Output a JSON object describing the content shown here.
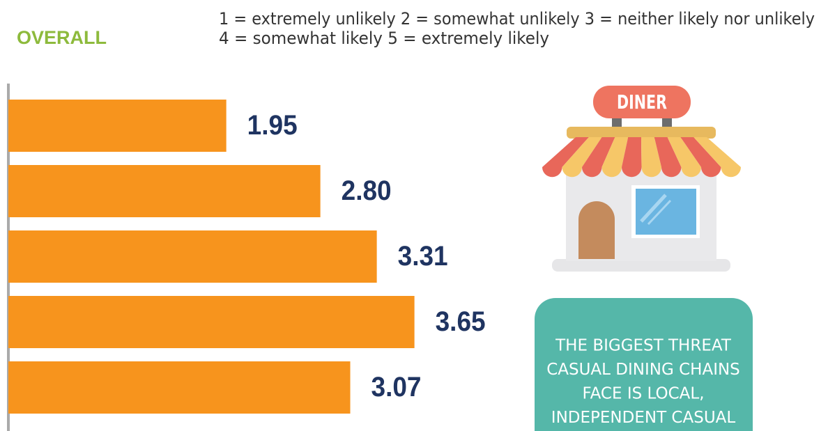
{
  "chart_data": {
    "type": "bar",
    "orientation": "horizontal",
    "title": "OVERALL",
    "notes": [
      "1 = extremely unlikely 2 = somewhat unlikely  3 = neither likely nor unlikely",
      "4 = somewhat  likely  5 = extremely likely"
    ],
    "categories": [
      null,
      null,
      null,
      null,
      null
    ],
    "values": [
      1.95,
      2.8,
      3.31,
      3.65,
      3.07
    ],
    "value_labels": [
      "1.95",
      "2.80",
      "3.31",
      "3.65",
      "3.07"
    ],
    "color": "#f7941d",
    "label_color": "#1f3461",
    "xlim": [
      0,
      5
    ]
  },
  "illustration": {
    "sign": "DINER"
  },
  "callout": {
    "lines": [
      "THE BIGGEST THREAT",
      "CASUAL DINING CHAINS",
      "FACE IS LOCAL,",
      "INDEPENDENT CASUAL"
    ]
  }
}
